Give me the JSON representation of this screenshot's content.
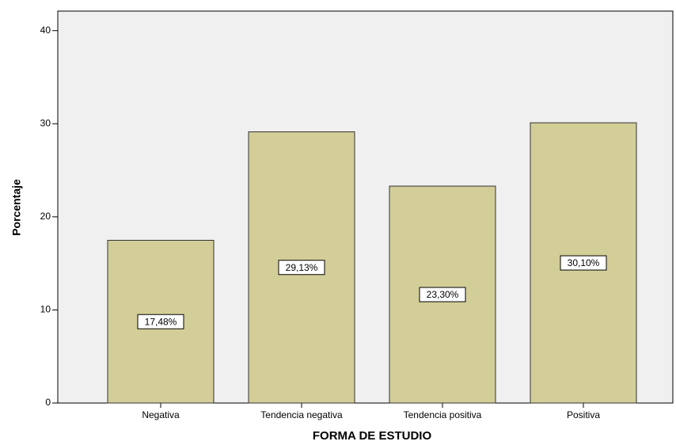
{
  "chart_data": {
    "type": "bar",
    "x_label": "FORMA DE ESTUDIO",
    "y_label": "Porcentaje",
    "categories": [
      "Negativa",
      "Tendencia negativa",
      "Tendencia positiva",
      "Positiva"
    ],
    "values": [
      17.48,
      29.13,
      23.3,
      30.1
    ],
    "value_labels": [
      "17,48%",
      "29,13%",
      "23,30%",
      "30,10%"
    ],
    "color": "#d3ce98",
    "ylim": [
      0,
      42.1
    ],
    "yticks": [
      0,
      10,
      20,
      30,
      40
    ],
    "grid": false
  }
}
